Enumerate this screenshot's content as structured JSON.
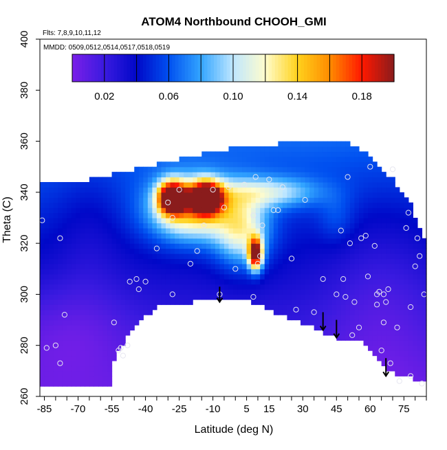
{
  "chart_data": {
    "type": "heatmap",
    "title": "ATOM4 Northbound CHOOH_GMI",
    "subtitle_lines": [
      "Flts: 7,8,9,10,11,12",
      "MMDD: 0509,0512,0514,0517,0518,0519"
    ],
    "xlabel": "Latitude (deg N)",
    "ylabel": "Theta (C)",
    "xlim": [
      -87,
      85
    ],
    "ylim": [
      260,
      400
    ],
    "x_ticks": [
      -85,
      -70,
      -55,
      -40,
      -25,
      -10,
      5,
      15,
      30,
      45,
      60,
      75
    ],
    "y_ticks": [
      260,
      280,
      300,
      320,
      340,
      360,
      380,
      400
    ],
    "colorbar": {
      "range": [
        0,
        0.2
      ],
      "tick_values": [
        0.02,
        0.06,
        0.1,
        0.14,
        0.18
      ],
      "tick_labels": [
        "0.02",
        "0.06",
        "0.10",
        "0.14",
        "0.18"
      ],
      "colors": [
        "#7a1fe8",
        "#3a1ae0",
        "#0008c8",
        "#0050f0",
        "#33a5ff",
        "#bfe7ff",
        "#fffccc",
        "#ffd21c",
        "#ff8c00",
        "#ff1800",
        "#8a1c1c"
      ]
    },
    "field": {
      "background_value": 0.03,
      "upper_edge": [
        [
          -87,
          344
        ],
        [
          -80,
          344
        ],
        [
          -70,
          344
        ],
        [
          -60,
          346
        ],
        [
          -50,
          348
        ],
        [
          -40,
          350
        ],
        [
          -25,
          353
        ],
        [
          -10,
          356
        ],
        [
          5,
          358
        ],
        [
          20,
          359
        ],
        [
          35,
          359
        ],
        [
          50,
          359
        ],
        [
          58,
          356
        ],
        [
          70,
          345
        ],
        [
          78,
          335
        ],
        [
          85,
          320
        ]
      ],
      "lower_edge": [
        [
          -87,
          264
        ],
        [
          -65,
          264
        ],
        [
          -55,
          264
        ],
        [
          -54,
          275
        ],
        [
          -45,
          288
        ],
        [
          -35,
          295
        ],
        [
          -20,
          297
        ],
        [
          -5,
          299
        ],
        [
          5,
          298
        ],
        [
          20,
          292
        ],
        [
          35,
          287
        ],
        [
          45,
          283
        ],
        [
          55,
          282
        ],
        [
          62,
          276
        ],
        [
          68,
          270
        ],
        [
          75,
          268
        ],
        [
          85,
          265
        ]
      ],
      "blobs": [
        {
          "x": -28,
          "y": 338,
          "v": 0.18,
          "sx": 6,
          "sy": 6
        },
        {
          "x": -13,
          "y": 338,
          "v": 0.18,
          "sx": 7,
          "sy": 6
        },
        {
          "x": 9,
          "y": 316,
          "v": 0.16,
          "sx": 3,
          "sy": 6
        },
        {
          "x": -20,
          "y": 333,
          "v": 0.09,
          "sx": 18,
          "sy": 12
        },
        {
          "x": 3,
          "y": 325,
          "v": 0.07,
          "sx": 12,
          "sy": 14
        },
        {
          "x": 15,
          "y": 340,
          "v": 0.05,
          "sx": 22,
          "sy": 6
        },
        {
          "x": -65,
          "y": 325,
          "v": -0.01,
          "sx": 15,
          "sy": 30
        },
        {
          "x": -75,
          "y": 285,
          "v": -0.015,
          "sx": 30,
          "sy": 20
        },
        {
          "x": 65,
          "y": 300,
          "v": -0.015,
          "sx": 25,
          "sy": 40
        },
        {
          "x": 45,
          "y": 330,
          "v": 0.015,
          "sx": 8,
          "sy": 10
        }
      ]
    },
    "points": [
      [
        -86,
        329
      ],
      [
        -78,
        322
      ],
      [
        -84,
        279
      ],
      [
        -80,
        280
      ],
      [
        -78,
        273
      ],
      [
        -76,
        292
      ],
      [
        -54,
        289
      ],
      [
        -52,
        278
      ],
      [
        -51,
        279
      ],
      [
        -50,
        276
      ],
      [
        -48,
        280
      ],
      [
        -47,
        305
      ],
      [
        -44,
        306
      ],
      [
        -43,
        302
      ],
      [
        -40,
        305
      ],
      [
        -35,
        318
      ],
      [
        -30,
        336
      ],
      [
        -28,
        330
      ],
      [
        -28,
        300
      ],
      [
        -25,
        341
      ],
      [
        -20,
        312
      ],
      [
        -17,
        317
      ],
      [
        -14,
        327
      ],
      [
        -10,
        341
      ],
      [
        -7,
        300
      ],
      [
        -5,
        334
      ],
      [
        -3,
        342
      ],
      [
        0,
        310
      ],
      [
        4,
        343
      ],
      [
        8,
        299
      ],
      [
        8,
        331
      ],
      [
        9,
        346
      ],
      [
        10,
        312
      ],
      [
        11,
        315
      ],
      [
        12,
        327
      ],
      [
        15,
        345
      ],
      [
        17,
        333
      ],
      [
        19,
        333
      ],
      [
        21,
        342
      ],
      [
        25,
        314
      ],
      [
        27,
        294
      ],
      [
        31,
        337
      ],
      [
        35,
        293
      ],
      [
        39,
        306
      ],
      [
        45,
        300
      ],
      [
        47,
        325
      ],
      [
        48,
        306
      ],
      [
        49,
        299
      ],
      [
        50,
        346
      ],
      [
        51,
        320
      ],
      [
        52,
        284
      ],
      [
        53,
        297
      ],
      [
        55,
        287
      ],
      [
        56,
        322
      ],
      [
        58,
        323
      ],
      [
        59,
        307
      ],
      [
        60,
        350
      ],
      [
        62,
        319
      ],
      [
        63,
        300
      ],
      [
        63,
        296
      ],
      [
        64,
        301
      ],
      [
        65,
        278
      ],
      [
        66,
        289
      ],
      [
        66,
        300
      ],
      [
        67,
        297
      ],
      [
        68,
        302
      ],
      [
        69,
        273
      ],
      [
        70,
        349
      ],
      [
        72,
        287
      ],
      [
        73,
        266
      ],
      [
        76,
        326
      ],
      [
        77,
        332
      ],
      [
        78,
        268
      ],
      [
        78,
        295
      ],
      [
        80,
        311
      ],
      [
        81,
        322
      ],
      [
        82,
        315
      ],
      [
        83,
        265
      ],
      [
        84,
        300
      ]
    ],
    "arrows": [
      {
        "x": -7,
        "y_top": 303,
        "y_tip": 297
      },
      {
        "x": 39,
        "y_top": 293,
        "y_tip": 286
      },
      {
        "x": 45,
        "y_top": 290,
        "y_tip": 283
      },
      {
        "x": 67,
        "y_top": 275,
        "y_tip": 268
      }
    ]
  }
}
